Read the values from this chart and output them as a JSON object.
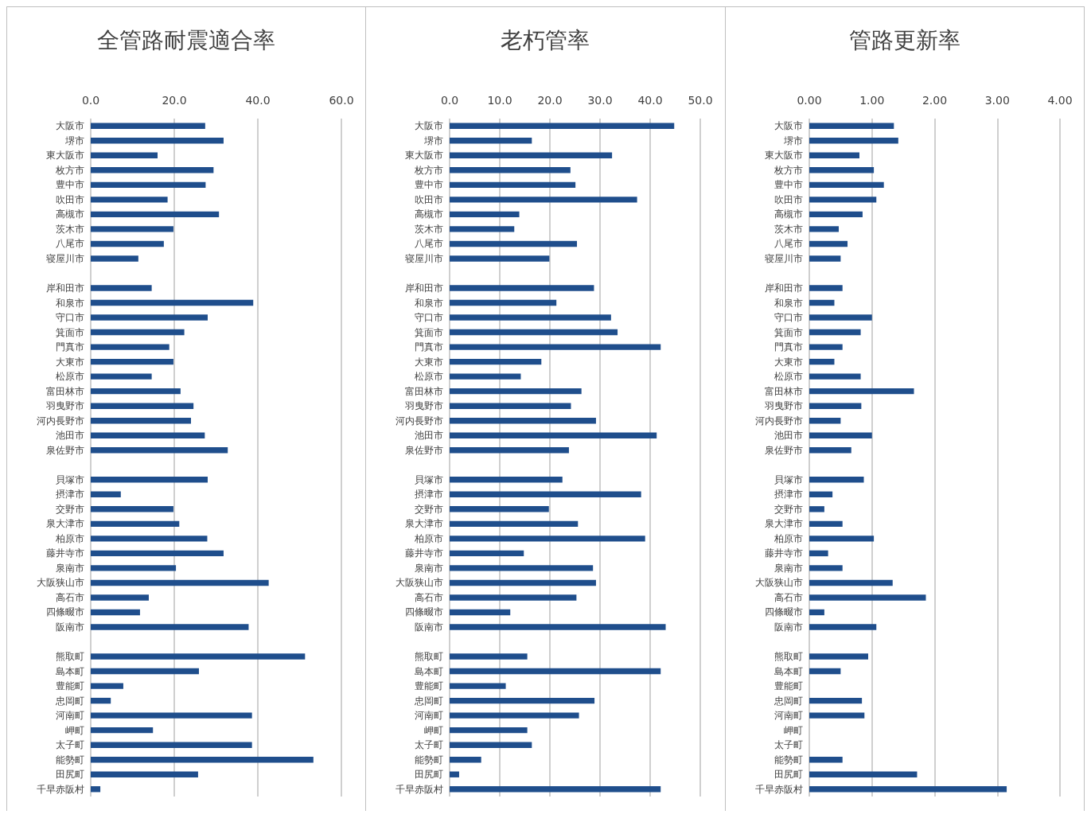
{
  "chart_data": [
    {
      "type": "bar",
      "orientation": "horizontal",
      "title": "全管路耐震適合率",
      "grid": "x",
      "color": "#1f4e8c",
      "categories": [
        "大阪市",
        "堺市",
        "東大阪市",
        "枚方市",
        "豊中市",
        "吹田市",
        "高槻市",
        "茨木市",
        "八尾市",
        "寝屋川市",
        null,
        "岸和田市",
        "和泉市",
        "守口市",
        "箕面市",
        "門真市",
        "大東市",
        "松原市",
        "富田林市",
        "羽曳野市",
        "河内長野市",
        "池田市",
        "泉佐野市",
        null,
        "貝塚市",
        "摂津市",
        "交野市",
        "泉大津市",
        "柏原市",
        "藤井寺市",
        "泉南市",
        "大阪狭山市",
        "高石市",
        "四條畷市",
        "阪南市",
        null,
        "熊取町",
        "島本町",
        "豊能町",
        "忠岡町",
        "河南町",
        "岬町",
        "太子町",
        "能勢町",
        "田尻町",
        "千早赤阪村"
      ],
      "values": [
        27.4,
        31.8,
        16.0,
        29.4,
        27.5,
        18.4,
        30.7,
        19.8,
        17.5,
        11.4,
        null,
        14.6,
        38.9,
        28.0,
        22.4,
        18.8,
        19.8,
        14.6,
        21.5,
        24.6,
        24.0,
        27.3,
        32.8,
        null,
        28.0,
        7.2,
        19.8,
        21.2,
        27.9,
        31.8,
        20.4,
        42.6,
        13.9,
        11.8,
        37.8,
        null,
        51.3,
        25.9,
        7.8,
        4.8,
        38.6,
        14.9,
        38.6,
        53.3,
        25.7,
        2.3
      ],
      "xlim": [
        0,
        60
      ],
      "xticks": [
        {
          "value": 0,
          "label": "0.0"
        },
        {
          "value": 20,
          "label": "20.0"
        },
        {
          "value": 40,
          "label": "40.0"
        },
        {
          "value": 60,
          "label": "60.0"
        }
      ]
    },
    {
      "type": "bar",
      "orientation": "horizontal",
      "title": "老朽管率",
      "grid": "x",
      "color": "#1f4e8c",
      "categories": [
        "大阪市",
        "堺市",
        "東大阪市",
        "枚方市",
        "豊中市",
        "吹田市",
        "高槻市",
        "茨木市",
        "八尾市",
        "寝屋川市",
        null,
        "岸和田市",
        "和泉市",
        "守口市",
        "箕面市",
        "門真市",
        "大東市",
        "松原市",
        "富田林市",
        "羽曳野市",
        "河内長野市",
        "池田市",
        "泉佐野市",
        null,
        "貝塚市",
        "摂津市",
        "交野市",
        "泉大津市",
        "柏原市",
        "藤井寺市",
        "泉南市",
        "大阪狭山市",
        "高石市",
        "四條畷市",
        "阪南市",
        null,
        "熊取町",
        "島本町",
        "豊能町",
        "忠岡町",
        "河南町",
        "岬町",
        "太子町",
        "能勢町",
        "田尻町",
        "千早赤阪村"
      ],
      "values": [
        44.8,
        16.4,
        32.4,
        24.1,
        25.1,
        37.4,
        13.9,
        12.9,
        25.4,
        19.9,
        null,
        28.8,
        21.3,
        32.2,
        33.5,
        42.1,
        18.3,
        14.2,
        26.3,
        24.2,
        29.2,
        41.3,
        23.8,
        null,
        22.5,
        38.2,
        19.8,
        25.6,
        39.0,
        14.8,
        28.6,
        29.2,
        25.3,
        12.1,
        43.1,
        null,
        15.5,
        42.1,
        11.2,
        28.9,
        25.8,
        15.5,
        16.4,
        6.3,
        1.9,
        42.1
      ],
      "xlim": [
        0,
        50
      ],
      "xticks": [
        {
          "value": 0,
          "label": "0.0"
        },
        {
          "value": 10,
          "label": "10.0"
        },
        {
          "value": 20,
          "label": "20.0"
        },
        {
          "value": 30,
          "label": "30.0"
        },
        {
          "value": 40,
          "label": "40.0"
        },
        {
          "value": 50,
          "label": "50.0"
        }
      ]
    },
    {
      "type": "bar",
      "orientation": "horizontal",
      "title": "管路更新率",
      "grid": "x",
      "color": "#1f4e8c",
      "categories": [
        "大阪市",
        "堺市",
        "東大阪市",
        "枚方市",
        "豊中市",
        "吹田市",
        "高槻市",
        "茨木市",
        "八尾市",
        "寝屋川市",
        null,
        "岸和田市",
        "和泉市",
        "守口市",
        "箕面市",
        "門真市",
        "大東市",
        "松原市",
        "富田林市",
        "羽曳野市",
        "河内長野市",
        "池田市",
        "泉佐野市",
        null,
        "貝塚市",
        "摂津市",
        "交野市",
        "泉大津市",
        "柏原市",
        "藤井寺市",
        "泉南市",
        "大阪狭山市",
        "高石市",
        "四條畷市",
        "阪南市",
        null,
        "熊取町",
        "島本町",
        "豊能町",
        "忠岡町",
        "河南町",
        "岬町",
        "太子町",
        "能勢町",
        "田尻町",
        "千早赤阪村"
      ],
      "values": [
        1.35,
        1.42,
        0.8,
        1.03,
        1.19,
        1.07,
        0.85,
        0.47,
        0.61,
        0.5,
        null,
        0.53,
        0.4,
        1.0,
        0.82,
        0.53,
        0.4,
        0.82,
        1.67,
        0.83,
        0.5,
        1.0,
        0.67,
        null,
        0.87,
        0.37,
        0.24,
        0.53,
        1.03,
        0.3,
        0.53,
        1.33,
        1.86,
        0.24,
        1.07,
        null,
        0.94,
        0.5,
        null,
        0.84,
        0.88,
        null,
        null,
        0.53,
        1.72,
        3.15
      ],
      "xlim": [
        0,
        4
      ],
      "xticks": [
        {
          "value": 0,
          "label": "0.00"
        },
        {
          "value": 1,
          "label": "1.00"
        },
        {
          "value": 2,
          "label": "2.00"
        },
        {
          "value": 3,
          "label": "3.00"
        },
        {
          "value": 4,
          "label": "4.00"
        }
      ]
    }
  ]
}
